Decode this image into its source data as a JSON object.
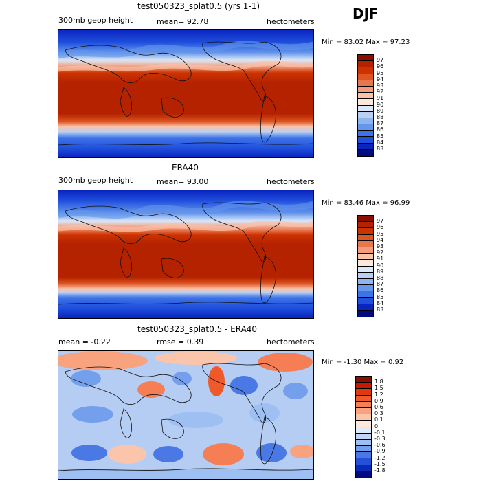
{
  "season": "DJF",
  "panels": [
    {
      "title": "test050323_splat0.5 (yrs 1-1)",
      "left": "300mb geop height",
      "mid": "mean=  92.78",
      "right": "hectometers",
      "minmax": "Min =  83.02 Max =  97.23",
      "colorbar": {
        "labels": [
          "97",
          "96",
          "95",
          "94",
          "93",
          "92",
          "91",
          "90",
          "89",
          "88",
          "87",
          "86",
          "85",
          "84",
          "83"
        ],
        "colors": [
          "#8b0e00",
          "#b52200",
          "#cc3300",
          "#dd5522",
          "#e8774d",
          "#f39b7a",
          "#fbc2a8",
          "#fde8dc",
          "#dce8f8",
          "#b9d0f3",
          "#90b4ee",
          "#6496ec",
          "#3d73e8",
          "#1f4fdc",
          "#0a24c0",
          "#000c80"
        ]
      }
    },
    {
      "title": "ERA40",
      "left": "300mb geop height",
      "mid": "mean=  93.00",
      "right": "hectometers",
      "minmax": "Min =  83.46 Max =  96.99",
      "colorbar": {
        "labels": [
          "97",
          "96",
          "95",
          "94",
          "93",
          "92",
          "91",
          "90",
          "89",
          "88",
          "87",
          "86",
          "85",
          "84",
          "83"
        ],
        "colors": [
          "#8b0e00",
          "#b52200",
          "#cc3300",
          "#dd5522",
          "#e8774d",
          "#f39b7a",
          "#fbc2a8",
          "#fde8dc",
          "#dce8f8",
          "#b9d0f3",
          "#90b4ee",
          "#6496ec",
          "#3d73e8",
          "#1f4fdc",
          "#0a24c0",
          "#000c80"
        ]
      }
    },
    {
      "title": "test050323_splat0.5 - ERA40",
      "left": "mean =  -0.22",
      "mid": "rmse =   0.39",
      "right": "hectometers",
      "minmax": "Min =  -1.30 Max =   0.92",
      "colorbar": {
        "labels": [
          "1.8",
          "1.5",
          "1.2",
          "0.9",
          "0.6",
          "0.3",
          "0.1",
          "0",
          "-0.1",
          "-0.3",
          "-0.6",
          "-0.9",
          "-1.2",
          "-1.5",
          "-1.8"
        ],
        "colors": [
          "#8b0e00",
          "#c41a00",
          "#e03a10",
          "#f05a2a",
          "#f67e55",
          "#f9a27e",
          "#fbc5ac",
          "#fde8dc",
          "#e0ebfa",
          "#c1d6f6",
          "#9dbff1",
          "#749fed",
          "#4a79e6",
          "#2451d6",
          "#0b28b8",
          "#000c80"
        ]
      }
    }
  ]
}
